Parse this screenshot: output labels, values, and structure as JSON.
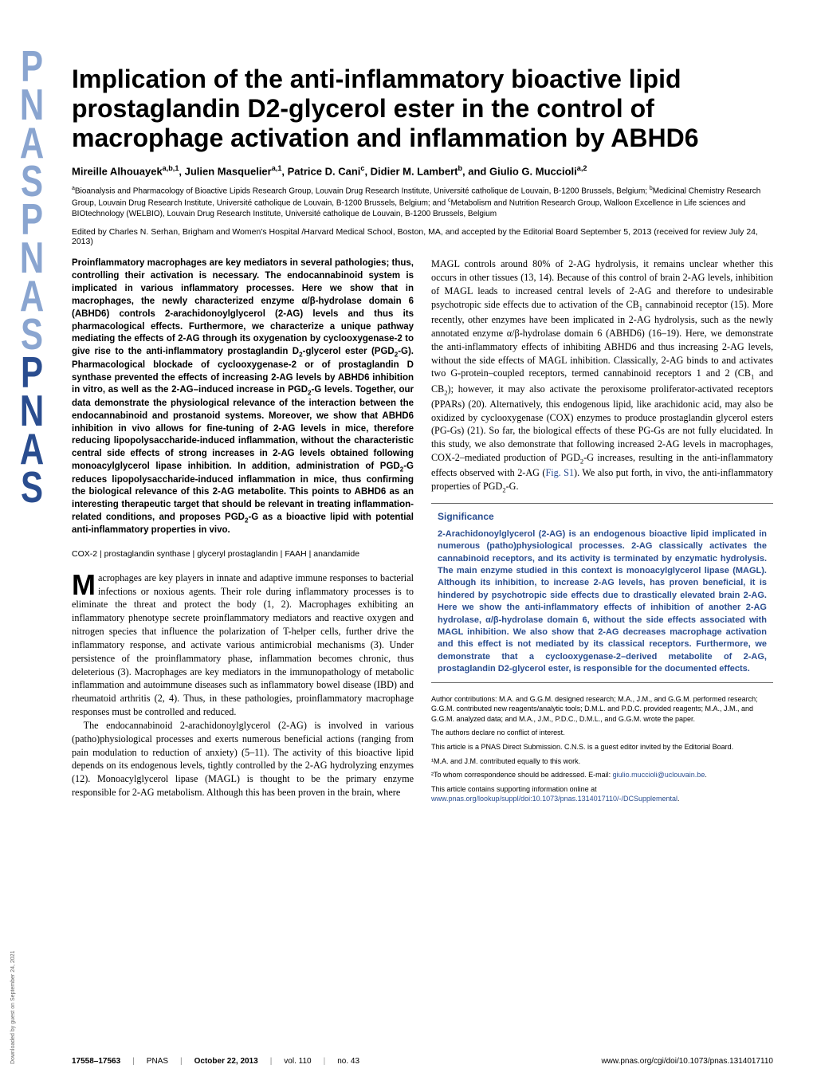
{
  "logo": {
    "letters": [
      "P",
      "N",
      "A",
      "S",
      "P",
      "N",
      "A",
      "S",
      "P",
      "N",
      "A",
      "S"
    ]
  },
  "title": "Implication of the anti-inflammatory bioactive lipid prostaglandin D2-glycerol ester in the control of macrophage activation and inflammation by ABHD6",
  "authors_html": "Mireille Alhouayek<sup>a,b,1</sup>, Julien Masquelier<sup>a,1</sup>, Patrice D. Cani<sup>c</sup>, Didier M. Lambert<sup>b</sup>, and Giulio G. Muccioli<sup>a,2</sup>",
  "affiliations_html": "<sup>a</sup>Bioanalysis and Pharmacology of Bioactive Lipids Research Group, Louvain Drug Research Institute, Université catholique de Louvain, B-1200 Brussels, Belgium; <sup>b</sup>Medicinal Chemistry Research Group, Louvain Drug Research Institute, Université catholique de Louvain, B-1200 Brussels, Belgium; and <sup>c</sup>Metabolism and Nutrition Research Group, Walloon Excellence in Life sciences and BIOtechnology (WELBIO), Louvain Drug Research Institute, Université catholique de Louvain, B-1200 Brussels, Belgium",
  "edited": "Edited by Charles N. Serhan, Brigham and Women's Hospital /Harvard Medical School, Boston, MA, and accepted by the Editorial Board September 5, 2013 (received for review July 24, 2013)",
  "abstract_html": "Proinflammatory macrophages are key mediators in several pathologies; thus, controlling their activation is necessary. The endocannabinoid system is implicated in various inflammatory processes. Here we show that in macrophages, the newly characterized enzyme α/β-hydrolase domain 6 (ABHD6) controls 2-arachidonoylglycerol (2-AG) levels and thus its pharmacological effects. Furthermore, we characterize a unique pathway mediating the effects of 2-AG through its oxygenation by cyclooxygenase-2 to give rise to the anti-inflammatory prostaglandin D<sub>2</sub>-glycerol ester (PGD<sub>2</sub>-G). Pharmacological blockade of cyclooxygenase-2 or of prostaglandin D synthase prevented the effects of increasing 2-AG levels by ABHD6 inhibition in vitro, as well as the 2-AG–induced increase in PGD<sub>2</sub>-G levels. Together, our data demonstrate the physiological relevance of the interaction between the endocannabinoid and prostanoid systems. Moreover, we show that ABHD6 inhibition in vivo allows for fine-tuning of 2-AG levels in mice, therefore reducing lipopolysaccharide-induced inflammation, without the characteristic central side effects of strong increases in 2-AG levels obtained following monoacylglycerol lipase inhibition. In addition, administration of PGD<sub>2</sub>-G reduces lipopolysaccharide-induced inflammation in mice, thus confirming the biological relevance of this 2-AG metabolite. This points to ABHD6 as an interesting therapeutic target that should be relevant in treating inflammation-related conditions, and proposes PGD<sub>2</sub>-G as a bioactive lipid with potential anti-inflammatory properties in vivo.",
  "keywords": "COX-2 | prostaglandin synthase | glyceryl prostaglandin | FAAH | anandamide",
  "body_col1_p1_html": "acrophages are key players in innate and adaptive immune responses to bacterial infections or noxious agents. Their role during inflammatory processes is to eliminate the threat and protect the body (1, 2). Macrophages exhibiting an inflammatory phenotype secrete proinflammatory mediators and reactive oxygen and nitrogen species that influence the polarization of T-helper cells, further drive the inflammatory response, and activate various antimicrobial mechanisms (3). Under persistence of the proinflammatory phase, inflammation becomes chronic, thus deleterious (3). Macrophages are key mediators in the immunopathology of metabolic inflammation and autoimmune diseases such as inflammatory bowel disease (IBD) and rheumatoid arthritis (2, 4). Thus, in these pathologies, proinflammatory macrophage responses must be controlled and reduced.",
  "body_col1_p2_html": "The endocannabinoid 2-arachidonoylglycerol (2-AG) is involved in various (patho)physiological processes and exerts numerous beneficial actions (ranging from pain modulation to reduction of anxiety) (5–11). The activity of this bioactive lipid depends on its endogenous levels, tightly controlled by the 2-AG hydrolyzing enzymes (12). Monoacylglycerol lipase (MAGL) is thought to be the primary enzyme responsible for 2-AG metabolism. Although this has been proven in the brain, where",
  "body_col2_p1_html": "MAGL controls around 80% of 2-AG hydrolysis, it remains unclear whether this occurs in other tissues (13, 14). Because of this control of brain 2-AG levels, inhibition of MAGL leads to increased central levels of 2-AG and therefore to undesirable psychotropic side effects due to activation of the CB<sub>1</sub> cannabinoid receptor (15). More recently, other enzymes have been implicated in 2-AG hydrolysis, such as the newly annotated enzyme α/β-hydrolase domain 6 (ABHD6) (16–19). Here, we demonstrate the anti-inflammatory effects of inhibiting ABHD6 and thus increasing 2-AG levels, without the side effects of MAGL inhibition. Classically, 2-AG binds to and activates two G-protein–coupled receptors, termed cannabinoid receptors 1 and 2 (CB<sub>1</sub> and CB<sub>2</sub>); however, it may also activate the peroxisome proliferator-activated receptors (PPARs) (20). Alternatively, this endogenous lipid, like arachidonic acid, may also be oxidized by cyclooxygenase (COX) enzymes to produce prostaglandin glycerol esters (PG-Gs) (21). So far, the biological effects of these PG-Gs are not fully elucidated. In this study, we also demonstrate that following increased 2-AG levels in macrophages, COX-2–mediated production of PGD<sub>2</sub>-G increases, resulting in the anti-inflammatory effects observed with 2-AG (<a>Fig. S1</a>). We also put forth, in vivo, the anti-inflammatory properties of PGD<sub>2</sub>-G.",
  "significance": {
    "title": "Significance",
    "text_html": "2-Arachidonoylglycerol (2-AG) is an endogenous bioactive lipid implicated in numerous (patho)physiological processes. 2-AG classically activates the cannabinoid receptors, and its activity is terminated by enzymatic hydrolysis. The main enzyme studied in this context is monoacylglycerol lipase (MAGL). Although its inhibition, to increase 2-AG levels, has proven beneficial, it is hindered by psychotropic side effects due to drastically elevated brain 2-AG. Here we show the anti-inflammatory effects of inhibition of another 2-AG hydrolase, α/β-hydrolase domain 6, without the side effects associated with MAGL inhibition. We also show that 2-AG decreases macrophage activation and this effect is not mediated by its classical receptors. Furthermore, we demonstrate that a cyclooxygenase-2–derived metabolite of 2-AG, prostaglandin D2-glycerol ester, is responsible for the documented effects."
  },
  "footnotes": {
    "contributions": "Author contributions: M.A. and G.G.M. designed research; M.A., J.M., and G.G.M. performed research; G.G.M. contributed new reagents/analytic tools; D.M.L. and P.D.C. provided reagents; M.A., J.M., and G.G.M. analyzed data; and M.A., J.M., P.D.C., D.M.L., and G.G.M. wrote the paper.",
    "conflict": "The authors declare no conflict of interest.",
    "submission": "This article is a PNAS Direct Submission. C.N.S. is a guest editor invited by the Editorial Board.",
    "equal": "¹M.A. and J.M. contributed equally to this work.",
    "correspondence_html": "²To whom correspondence should be addressed. E-mail: <a>giulio.muccioli@uclouvain.be</a>.",
    "supporting_html": "This article contains supporting information online at <a>www.pnas.org/lookup/suppl/doi:10.1073/pnas.1314017110/-/DCSupplemental</a>."
  },
  "footer": {
    "pages": "17558–17563",
    "journal": "PNAS",
    "date": "October 22, 2013",
    "vol": "vol. 110",
    "no": "no. 43",
    "url": "www.pnas.org/cgi/doi/10.1073/pnas.1314017110"
  },
  "download_note": "Downloaded by guest on September 24, 2021",
  "colors": {
    "pnas_blue": "#2a4d8f",
    "pnas_light": "#8aa5d0",
    "text": "#000000",
    "background": "#ffffff"
  },
  "typography": {
    "title_fontsize": 32,
    "authors_fontsize": 13,
    "body_fontsize": 12.2,
    "abstract_fontsize": 11.5,
    "footnote_fontsize": 9,
    "footer_fontsize": 10
  }
}
